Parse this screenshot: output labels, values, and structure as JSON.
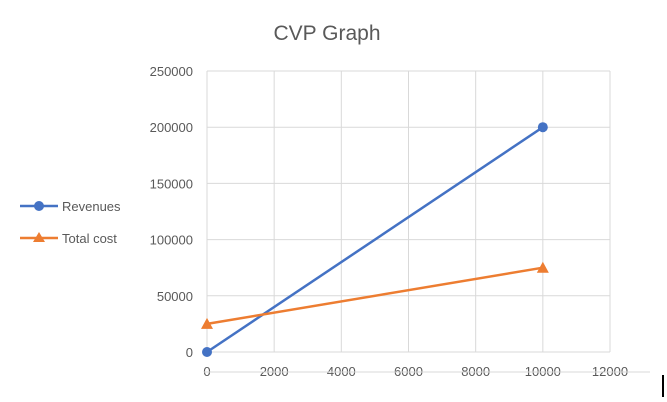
{
  "chart_data": {
    "type": "line",
    "title": "CVP Graph",
    "xlabel": "",
    "ylabel": "",
    "xlim": [
      0,
      12000
    ],
    "ylim": [
      0,
      250000
    ],
    "x_ticks": [
      "0",
      "2000",
      "4000",
      "6000",
      "8000",
      "10000",
      "12000"
    ],
    "y_ticks": [
      "0",
      "50000",
      "100000",
      "150000",
      "200000",
      "250000"
    ],
    "grid": true,
    "legend_position": "left",
    "series": [
      {
        "name": "Revenues",
        "color": "#4472C4",
        "marker": "circle",
        "points": [
          {
            "x": 0,
            "y": 0
          },
          {
            "x": 10000,
            "y": 200000
          }
        ]
      },
      {
        "name": "Total cost",
        "color": "#ED7D31",
        "marker": "triangle",
        "points": [
          {
            "x": 0,
            "y": 25000
          },
          {
            "x": 10000,
            "y": 75000
          }
        ]
      }
    ]
  }
}
